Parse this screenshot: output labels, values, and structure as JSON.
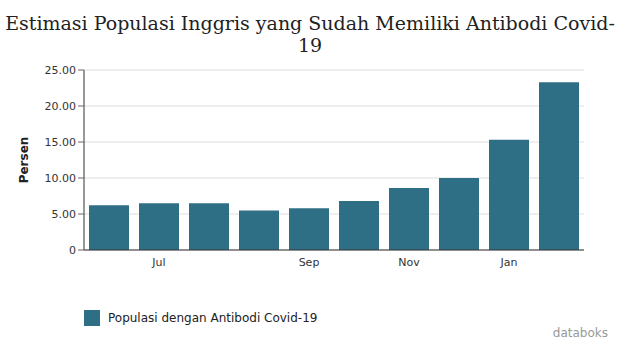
{
  "chart_data": {
    "type": "bar",
    "title": "Estimasi Populasi Inggris yang Sudah Memiliki Antibodi Covid-19",
    "y_label": "Persen",
    "categories": [
      null,
      "Jul",
      null,
      null,
      "Sep",
      null,
      "Nov",
      null,
      "Jan",
      null
    ],
    "series": [
      {
        "name": "Populasi dengan Antibodi Covid-19",
        "color": "#2f6f85",
        "values": [
          6.2,
          6.5,
          6.5,
          5.5,
          5.8,
          6.8,
          8.6,
          10.0,
          15.3,
          23.3
        ]
      }
    ],
    "ylim": [
      0,
      25
    ],
    "yticks": [
      0,
      {
        "value": 5,
        "label": "5.00"
      },
      {
        "value": 10,
        "label": "10.00"
      },
      {
        "value": 15,
        "label": "15.00"
      },
      {
        "value": 20,
        "label": "20.00"
      },
      {
        "value": 25,
        "label": "25.00"
      }
    ],
    "grid": true,
    "legend": "bottom",
    "annotations": [
      "databoks"
    ]
  }
}
